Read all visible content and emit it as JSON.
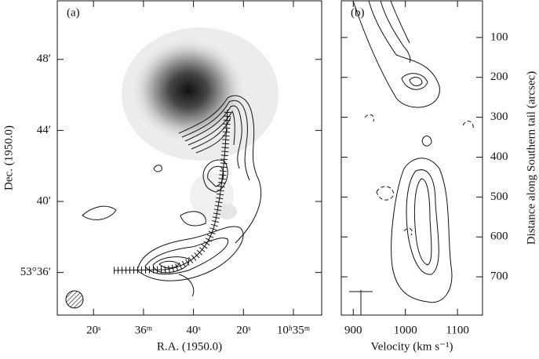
{
  "chart_data": [
    {
      "type": "contour",
      "panel_label": "(a)",
      "x_label": "R.A. (1950.0)",
      "y_label": "Dec. (1950.0)",
      "xlim": [
        94.5,
        -11.3
      ],
      "xticks": [
        {
          "value": 80,
          "label": "20ˢ"
        },
        {
          "value": 60,
          "label": "36ᵐ"
        },
        {
          "value": 40,
          "label": "40ˢ"
        },
        {
          "value": 20,
          "label": "20ˢ"
        },
        {
          "value": 0,
          "label": "10ʰ35ᵐ"
        }
      ],
      "ylim": [
        33.6,
        51.3
      ],
      "yticks": [
        {
          "value": 36,
          "label": "53°36′"
        },
        {
          "value": 40,
          "label": "40′"
        },
        {
          "value": 44,
          "label": "44′"
        },
        {
          "value": 48,
          "label": "48′"
        }
      ],
      "y_side": "left"
    },
    {
      "type": "contour",
      "panel_label": "(b)",
      "x_label": "Velocity (km s⁻¹)",
      "y_label": "Distance along Southern tail (arcsec)",
      "xlim": [
        877,
        1148
      ],
      "xticks": [
        900,
        1000,
        1100
      ],
      "ylim": [
        796,
        8
      ],
      "yticks": [
        100,
        200,
        300,
        400,
        500,
        600,
        700
      ],
      "y_side": "right"
    }
  ]
}
